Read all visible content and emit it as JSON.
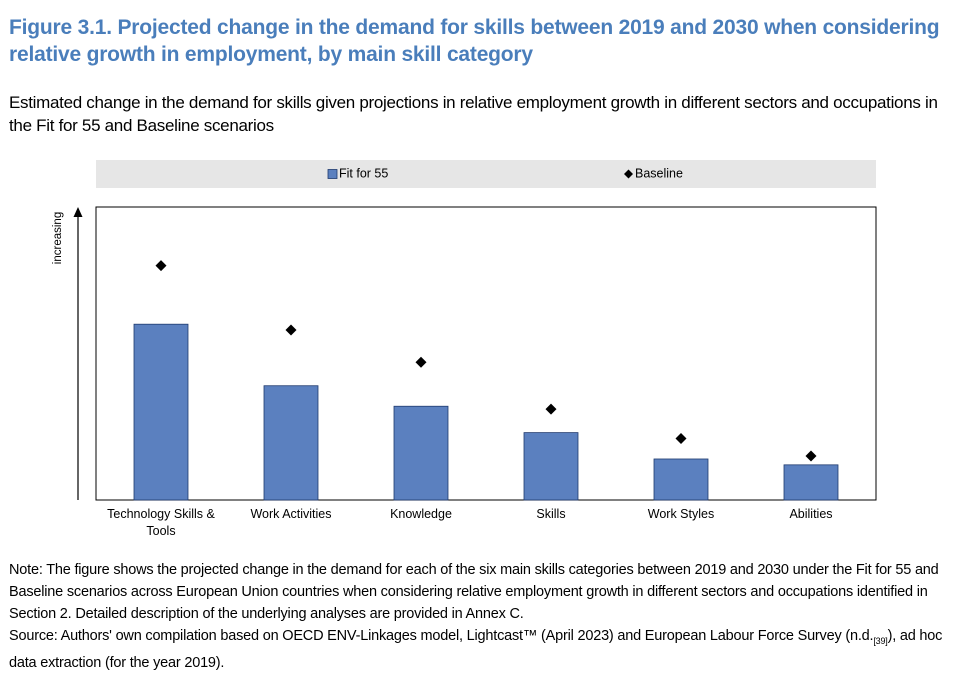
{
  "chart_data": {
    "type": "bar",
    "title": "Figure 3.1. Projected change in the demand for skills between 2019 and 2030 when considering relative growth in employment, by main skill category",
    "subtitle": "Estimated change in the demand for skills given projections in relative employment growth in different sectors and occupations in the Fit for 55 and Baseline scenarios",
    "ylabel": "increasing",
    "categories": [
      "Technology Skills & Tools",
      "Work Activities",
      "Knowledge",
      "Skills",
      "Work Styles",
      "Abilities"
    ],
    "series": [
      {
        "name": "Fit for 55",
        "color": "#5b80bf",
        "marker": "bar",
        "values": [
          60,
          39,
          32,
          23,
          14,
          12
        ]
      },
      {
        "name": "Baseline",
        "color": "#000000",
        "marker": "diamond",
        "values": [
          80,
          58,
          47,
          31,
          21,
          15
        ]
      }
    ],
    "ylim": [
      0,
      100
    ],
    "note": "Note: The figure shows the projected change in the demand for each of the six main skills categories between 2019 and 2030 under the Fit for 55 and Baseline scenarios across European Union countries when considering relative employment growth in different sectors and occupations identified in Section 2. Detailed description of the underlying analyses are provided in Annex C.",
    "source": [
      "Source: Authors' own compilation based on OECD ENV-Linkages model, Lightcast™ (April 2023) and European Labour Force Survey (n.d.",
      "[39]",
      "), ad hoc data extraction (for the year 2019)."
    ]
  }
}
